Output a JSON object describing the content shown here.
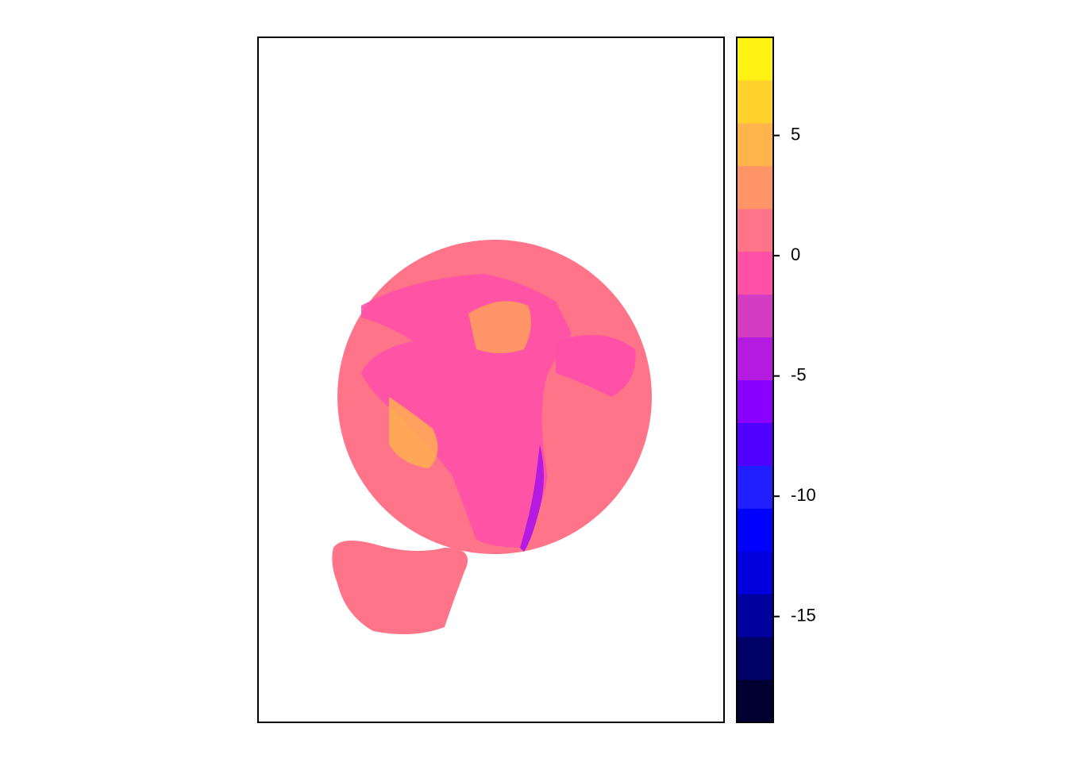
{
  "chart_data": {
    "type": "raster",
    "legend": {
      "lim": [
        -19.4,
        9.08
      ],
      "breaks": [
        -19.4,
        -17.62,
        -15.84,
        -14.06,
        -12.28,
        -10.5,
        -8.72,
        -6.94,
        -5.16,
        -3.38,
        -1.6,
        0.18,
        1.96,
        3.74,
        5.52,
        7.3,
        9.08
      ],
      "colors": [
        "#000033",
        "#000066",
        "#00009f",
        "#0000dd",
        "#0000ff",
        "#2020ff",
        "#5000ff",
        "#8a00ff",
        "#b41ae0",
        "#d23cc0",
        "#ff50a8",
        "#ff7488",
        "#ff9466",
        "#ffb44c",
        "#ffd22c",
        "#fff214",
        "#ffff66"
      ],
      "ticks": [
        -15,
        -10,
        -5,
        0,
        5
      ]
    }
  }
}
